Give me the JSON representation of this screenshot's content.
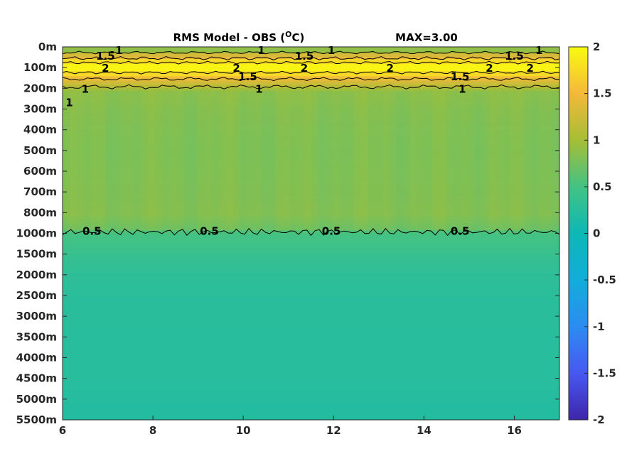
{
  "chart_data": {
    "type": "heatmap",
    "title": "RMS Model - OBS (",
    "title_unit_sup": "O",
    "title_unit_end": "C)",
    "max_label": "MAX=3.00",
    "xlim": [
      6,
      17
    ],
    "x_ticks": [
      "6",
      "8",
      "10",
      "12",
      "14",
      "16"
    ],
    "x_tick_values": [
      6,
      8,
      10,
      12,
      14,
      16
    ],
    "depth_levels": [
      "0m",
      "100m",
      "200m",
      "300m",
      "400m",
      "500m",
      "600m",
      "700m",
      "800m",
      "1000m",
      "1500m",
      "2000m",
      "2500m",
      "3000m",
      "3500m",
      "4000m",
      "4500m",
      "5000m",
      "5500m"
    ],
    "colorbar": {
      "range": [
        -2,
        2
      ],
      "ticks": [
        "2",
        "1.5",
        "1",
        "0.5",
        "0",
        "-0.5",
        "-1",
        "-1.5",
        "-2"
      ],
      "tick_values": [
        2,
        1.5,
        1,
        0.5,
        0,
        -0.5,
        -1,
        -1.5,
        -2
      ]
    },
    "depth_profile": {
      "levels": [
        "0m",
        "100m",
        "200m",
        "300m",
        "400m",
        "500m",
        "600m",
        "700m",
        "800m",
        "1000m",
        "1500m",
        "2000m",
        "2500m",
        "3000m",
        "3500m",
        "4000m",
        "4500m",
        "5000m",
        "5500m"
      ],
      "mean_values": [
        1.05,
        1.85,
        0.95,
        0.85,
        0.8,
        0.78,
        0.8,
        0.82,
        0.85,
        0.5,
        0.38,
        0.3,
        0.27,
        0.26,
        0.25,
        0.25,
        0.25,
        0.22,
        0.2
      ]
    },
    "contour_labels": [
      {
        "text": "1",
        "x": 7.25,
        "depth": "0m"
      },
      {
        "text": "1.5",
        "x": 6.95,
        "depth": "0m"
      },
      {
        "text": "2",
        "x": 6.95,
        "depth": "100m"
      },
      {
        "text": "1",
        "x": 6.5,
        "depth": "200m"
      },
      {
        "text": "1",
        "x": 6.15,
        "depth": "300m"
      },
      {
        "text": "1",
        "x": 10.4,
        "depth": "0m"
      },
      {
        "text": "1.5",
        "x": 11.35,
        "depth": "0m"
      },
      {
        "text": "1",
        "x": 11.95,
        "depth": "0m"
      },
      {
        "text": "2",
        "x": 9.85,
        "depth": "100m"
      },
      {
        "text": "1.5",
        "x": 10.1,
        "depth": "100m"
      },
      {
        "text": "2",
        "x": 11.35,
        "depth": "100m"
      },
      {
        "text": "1",
        "x": 10.35,
        "depth": "200m"
      },
      {
        "text": "2",
        "x": 13.25,
        "depth": "100m"
      },
      {
        "text": "1.5",
        "x": 14.8,
        "depth": "100m"
      },
      {
        "text": "1",
        "x": 14.85,
        "depth": "200m"
      },
      {
        "text": "2",
        "x": 15.45,
        "depth": "100m"
      },
      {
        "text": "1.5",
        "x": 16.0,
        "depth": "0m"
      },
      {
        "text": "1",
        "x": 16.55,
        "depth": "0m"
      },
      {
        "text": "2",
        "x": 16.35,
        "depth": "100m"
      },
      {
        "text": "0.5",
        "x": 6.65,
        "depth": "1000m"
      },
      {
        "text": "0.5",
        "x": 9.25,
        "depth": "1000m"
      },
      {
        "text": "0.5",
        "x": 11.95,
        "depth": "1000m"
      },
      {
        "text": "0.5",
        "x": 14.8,
        "depth": "1000m"
      }
    ]
  }
}
